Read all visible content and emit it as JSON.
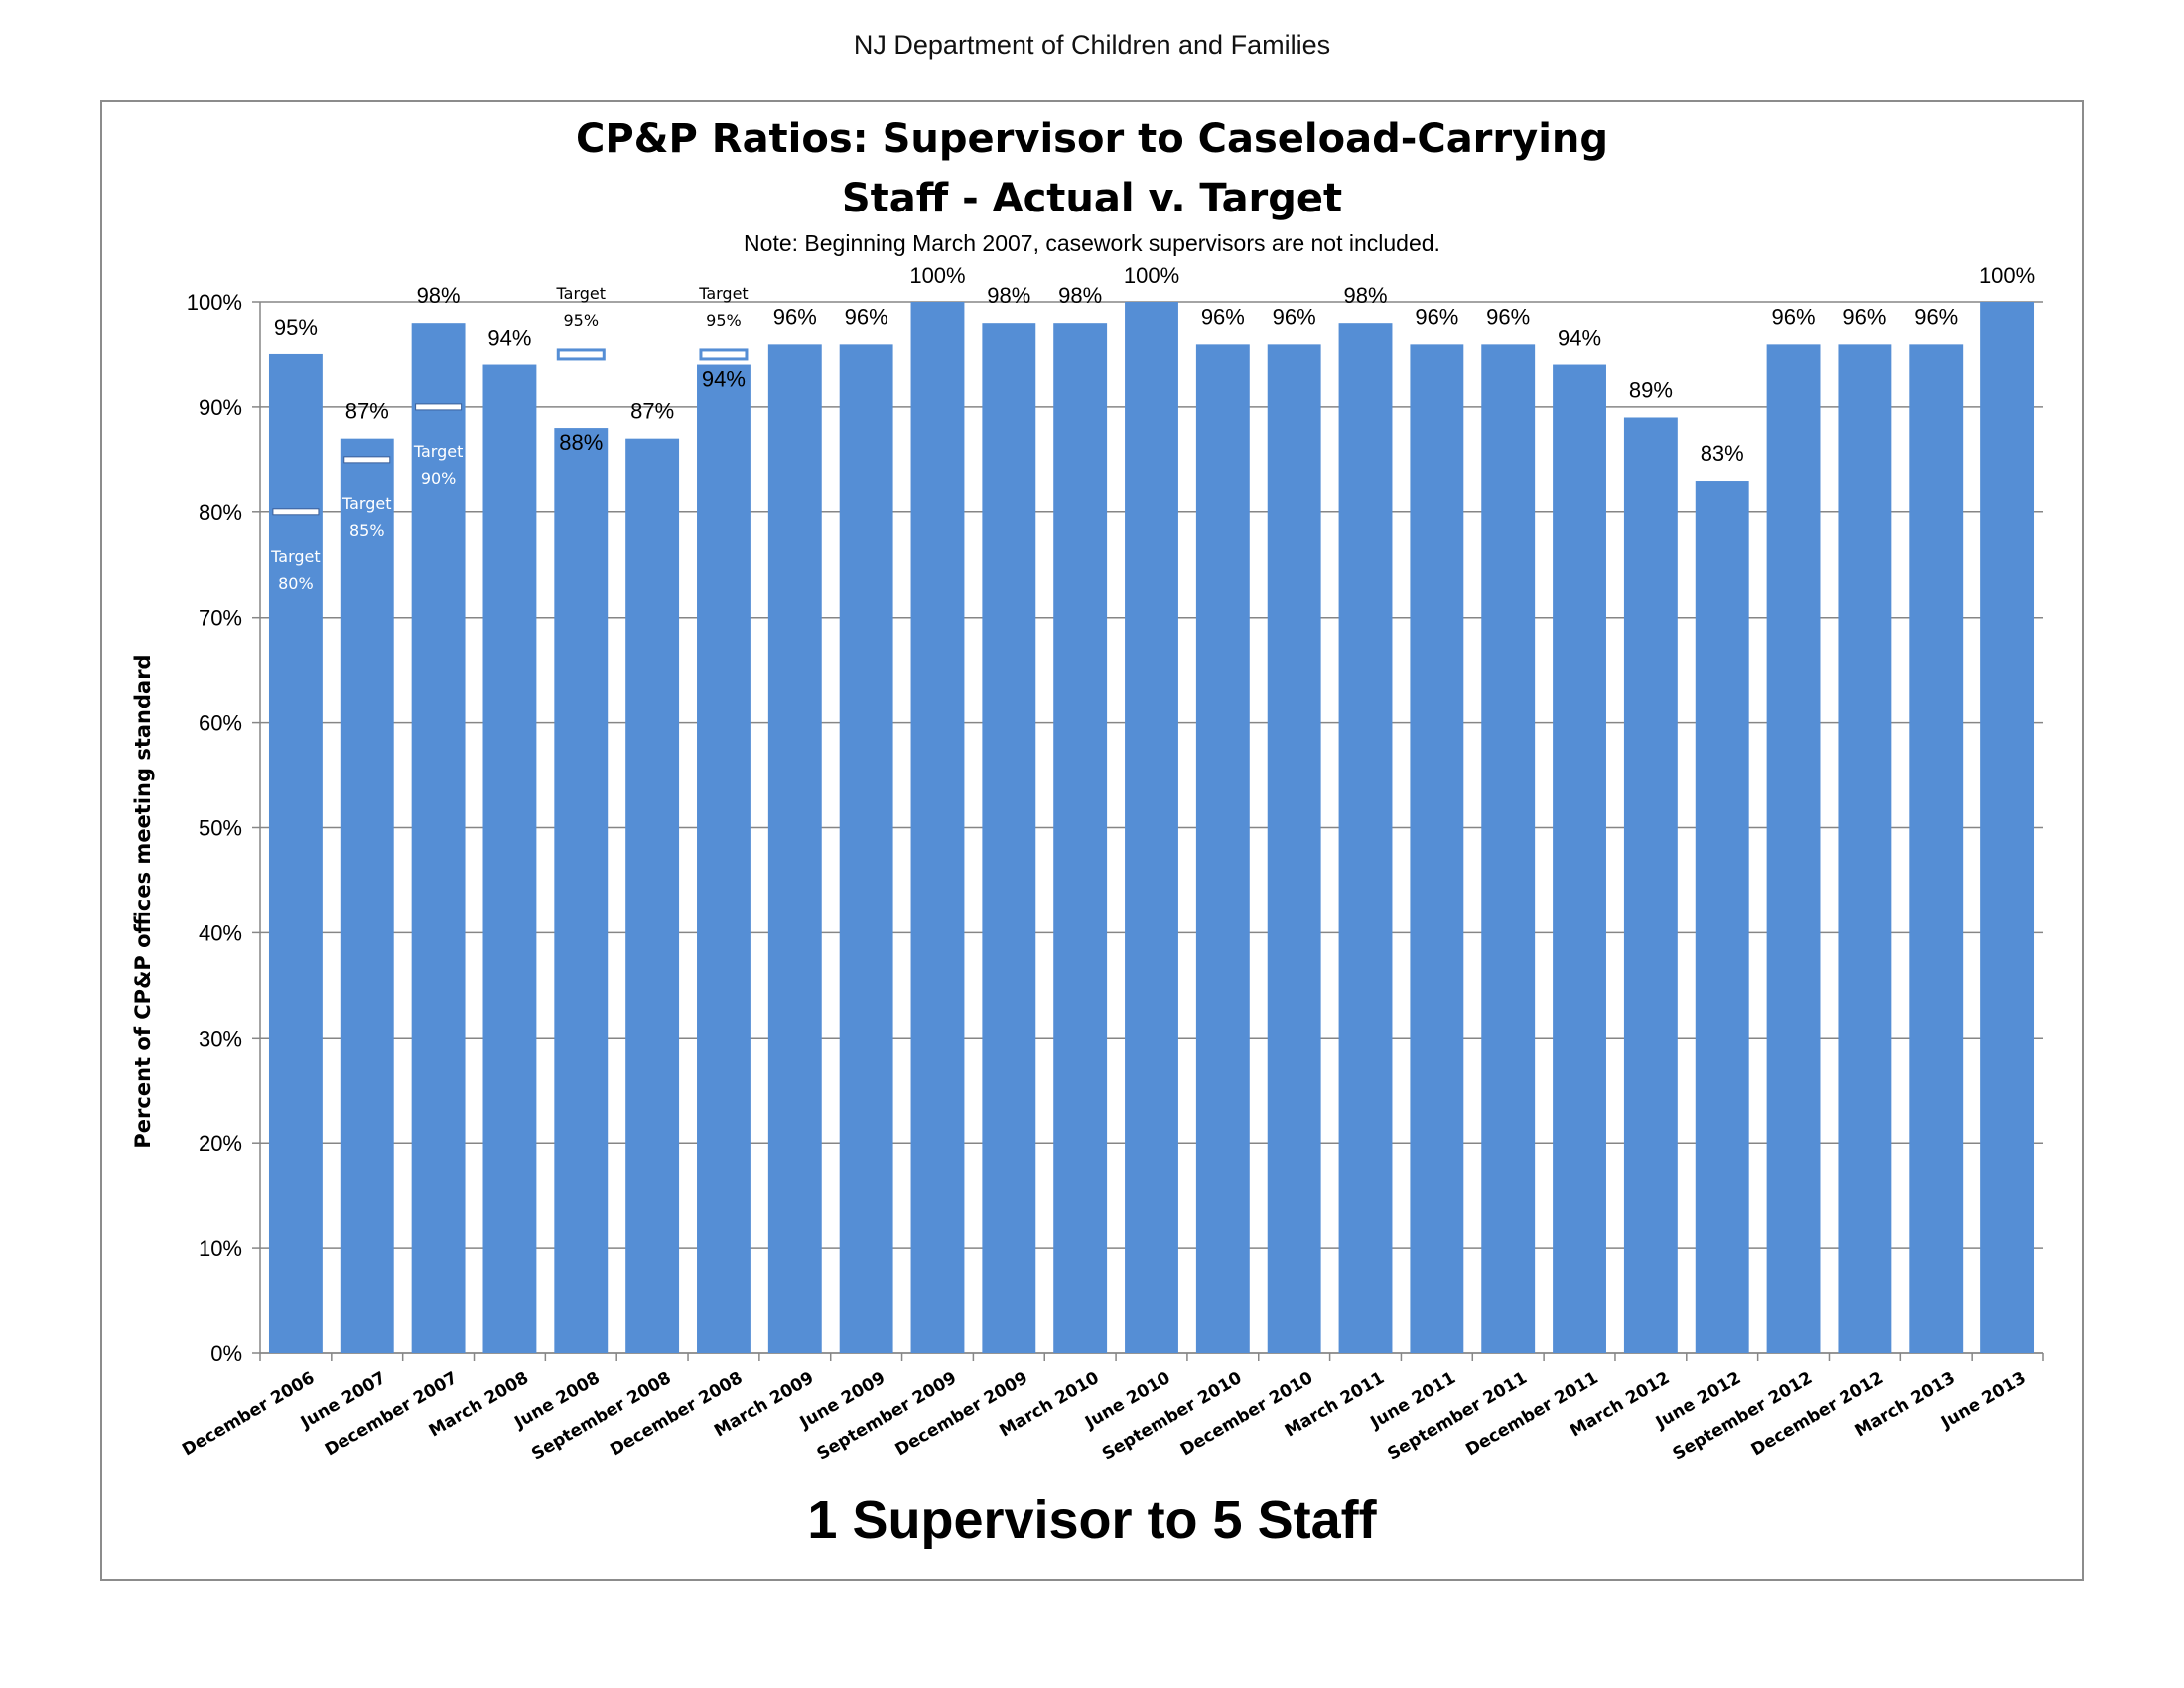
{
  "header": "NJ Department of Children and Families",
  "chart_data": {
    "type": "bar",
    "title_line1": "CP&P Ratios: Supervisor to Caseload-Carrying",
    "title_line2": "Staff - Actual v. Target",
    "note": "Note: Beginning March 2007, casework supervisors are not included.",
    "subtitle": "1 Supervisor to 5 Staff",
    "ylabel": "Percent of CP&P offices meeting standard",
    "ylim": [
      0,
      100
    ],
    "yticks": [
      "0%",
      "10%",
      "20%",
      "30%",
      "40%",
      "50%",
      "60%",
      "70%",
      "80%",
      "90%",
      "100%"
    ],
    "grid": true,
    "bar_color": "#558ed5",
    "categories": [
      "December 2006",
      "June 2007",
      "December 2007",
      "March 2008",
      "June 2008",
      "September 2008",
      "December 2008",
      "March  2009",
      "June 2009",
      "September 2009",
      "December 2009",
      "March 2010",
      "June 2010",
      "September 2010",
      "December 2010",
      "March 2011",
      "June 2011",
      "September 2011",
      "December 2011",
      "March 2012",
      "June 2012",
      "September 2012",
      "December 2012",
      "March 2013",
      "June 2013"
    ],
    "values": [
      95,
      87,
      98,
      94,
      88,
      87,
      94,
      96,
      96,
      100,
      98,
      98,
      100,
      96,
      96,
      98,
      96,
      96,
      94,
      89,
      83,
      96,
      96,
      96,
      100
    ],
    "data_labels": [
      "95%",
      "87%",
      "98%",
      "94%",
      "88%",
      "87%",
      "94%",
      "96%",
      "96%",
      "100%",
      "98%",
      "98%",
      "100%",
      "96%",
      "96%",
      "98%",
      "96%",
      "96%",
      "94%",
      "89%",
      "83%",
      "96%",
      "96%",
      "96%",
      "100%"
    ],
    "targets": [
      {
        "category_index": 0,
        "value": 80,
        "label_word": "Target",
        "label_value": "80%"
      },
      {
        "category_index": 1,
        "value": 85,
        "label_word": "Target",
        "label_value": "85%"
      },
      {
        "category_index": 2,
        "value": 90,
        "label_word": "Target",
        "label_value": "90%"
      },
      {
        "category_index": 4,
        "value": 95,
        "label_word": "Target",
        "label_value": "95%"
      },
      {
        "category_index": 6,
        "value": 95,
        "label_word": "Target",
        "label_value": "95%"
      }
    ]
  }
}
